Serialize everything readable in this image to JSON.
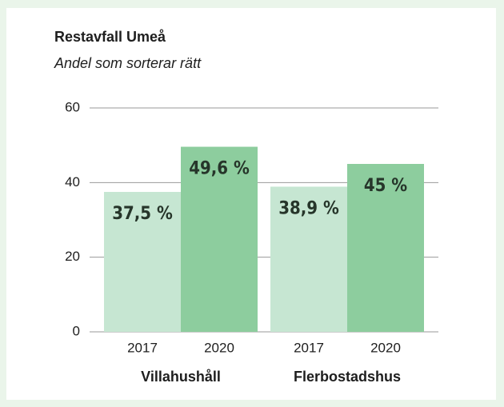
{
  "chart_data": {
    "type": "bar",
    "title": "Restavfall Umeå",
    "subtitle": "Andel som sorterar rätt",
    "groups": [
      {
        "name": "Villahushåll",
        "categories": [
          "2017",
          "2020"
        ],
        "values": [
          37.5,
          49.6
        ],
        "value_labels": [
          "37,5 %",
          "49,6 %"
        ],
        "colors": [
          "#c6e6d2",
          "#8dcd9e"
        ]
      },
      {
        "name": "Flerbostadshus",
        "categories": [
          "2017",
          "2020"
        ],
        "values": [
          38.9,
          45
        ],
        "value_labels": [
          "38,9 %",
          "45 %"
        ],
        "colors": [
          "#c6e6d2",
          "#8dcd9e"
        ]
      }
    ],
    "ylim": [
      0,
      60
    ],
    "yticks": [
      0,
      20,
      40,
      60
    ],
    "grid": true
  }
}
